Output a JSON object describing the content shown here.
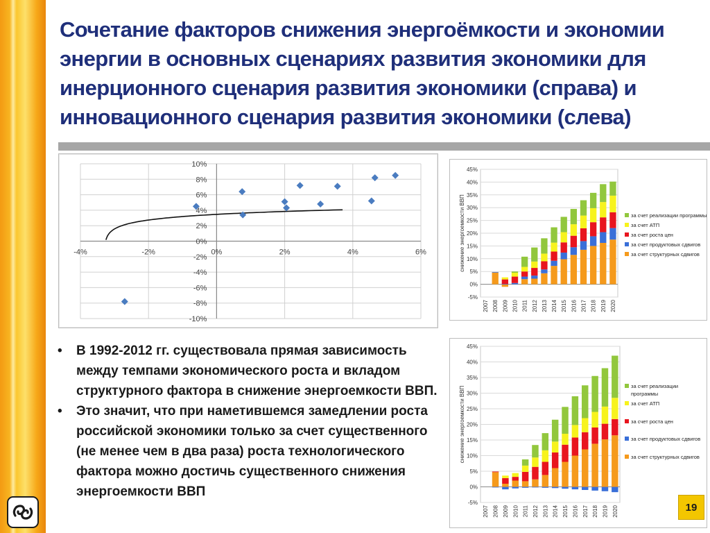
{
  "slide": {
    "title": "Сочетание факторов снижения энергоёмкости и экономии энергии в основных сценариях развития экономики для инерционного сценария развития экономики (справа) и инновационного сценария развития экономики (слева)",
    "page_number": "19",
    "logo_icon": "logo-icon",
    "colors": {
      "title": "#1f2f7a",
      "stripe": "#f7a818",
      "rule": "#a6a6a6",
      "marker": "#4a7cc0",
      "page_badge": "#f3c600"
    }
  },
  "bullets": [
    "В 1992-2012 гг. существовала прямая зависимость между темпами экономического роста и вкладом структурного фактора в снижение энергоемкости ВВП.",
    "Это значит, что при наметившемся замедлении роста российской экономики только за счет существенного (не менее чем в два раза) роста технологического фактора можно достичь существенного снижения энергоемкости ВВП"
  ],
  "chart_data": [
    {
      "type": "scatter",
      "title": "",
      "xlabel": "",
      "ylabel": "",
      "xlim": [
        -0.04,
        0.06
      ],
      "ylim": [
        -0.1,
        0.1
      ],
      "x_ticks": [
        "-4%",
        "-2%",
        "0%",
        "2%",
        "4%",
        "6%"
      ],
      "y_ticks": [
        "10%",
        "8%",
        "6%",
        "4%",
        "2%",
        "0%",
        "-2%",
        "-4%",
        "-6%",
        "-8%",
        "-10%"
      ],
      "grid": true,
      "marker_color": "#4a7cc0",
      "points": [
        {
          "x": -0.027,
          "y": -0.078
        },
        {
          "x": -0.006,
          "y": 0.045
        },
        {
          "x": 0.0075,
          "y": 0.064
        },
        {
          "x": 0.0077,
          "y": 0.034
        },
        {
          "x": 0.02,
          "y": 0.051
        },
        {
          "x": 0.0205,
          "y": 0.043
        },
        {
          "x": 0.0245,
          "y": 0.072
        },
        {
          "x": 0.0305,
          "y": 0.048
        },
        {
          "x": 0.0355,
          "y": 0.071
        },
        {
          "x": 0.0455,
          "y": 0.052
        },
        {
          "x": 0.0465,
          "y": 0.082
        },
        {
          "x": 0.0525,
          "y": 0.085
        }
      ],
      "trendline": {
        "type": "logarithmic",
        "x_start": -0.0325,
        "x_end": 0.037,
        "x_shift": 0.033,
        "a": 0.00787,
        "b": 0.0615
      }
    },
    {
      "type": "bar",
      "stacked": true,
      "ylabel": "снижение энергоемкости ВВП",
      "ylim": [
        -0.05,
        0.45
      ],
      "y_ticks": [
        "45%",
        "40%",
        "35%",
        "30%",
        "25%",
        "20%",
        "15%",
        "10%",
        "5%",
        "0%",
        "-5%"
      ],
      "categories": [
        "2007",
        "2008",
        "2009",
        "2010",
        "2011",
        "2012",
        "2013",
        "2014",
        "2015",
        "2016",
        "2017",
        "2018",
        "2019",
        "2020"
      ],
      "legend_position": "right",
      "series": [
        {
          "name": "за счет структурных сдвигов",
          "color": "#f59a1c",
          "values": [
            0.0,
            0.046,
            -0.01,
            0.0,
            0.02,
            0.022,
            0.043,
            0.072,
            0.098,
            0.115,
            0.135,
            0.15,
            0.162,
            0.175
          ]
        },
        {
          "name": "за счет продуктовых сдвигов",
          "color": "#3a6fd8",
          "values": [
            0,
            0.002,
            0.001,
            0.005,
            0.01,
            0.012,
            0.015,
            0.02,
            0.026,
            0.03,
            0.034,
            0.038,
            0.042,
            0.045
          ]
        },
        {
          "name": "за счет роста цен",
          "color": "#e8151e",
          "values": [
            0,
            0,
            0.018,
            0.025,
            0.02,
            0.03,
            0.032,
            0.036,
            0.04,
            0.045,
            0.05,
            0.055,
            0.058,
            0.062
          ]
        },
        {
          "name": "за счет АТП",
          "color": "#f7f31d",
          "values": [
            0,
            0,
            0.008,
            0.015,
            0.018,
            0.025,
            0.03,
            0.035,
            0.04,
            0.045,
            0.05,
            0.055,
            0.06,
            0.065
          ]
        },
        {
          "name": "за счет реализации программы",
          "color": "#92c73d",
          "values": [
            0,
            0,
            0.0,
            0.005,
            0.04,
            0.055,
            0.06,
            0.06,
            0.06,
            0.06,
            0.06,
            0.06,
            0.07,
            0.055
          ]
        }
      ]
    },
    {
      "type": "bar",
      "stacked": true,
      "ylabel": "снижение энергоемкости ВВП",
      "ylim": [
        -0.05,
        0.45
      ],
      "y_ticks": [
        "45%",
        "40%",
        "35%",
        "30%",
        "25%",
        "20%",
        "15%",
        "10%",
        "5%",
        "0%",
        "-5%"
      ],
      "categories": [
        "2007",
        "2008",
        "2009",
        "2010",
        "2011",
        "2012",
        "2013",
        "2014",
        "2015",
        "2016",
        "2017",
        "2018",
        "2019",
        "2020"
      ],
      "legend_position": "right",
      "series": [
        {
          "name": "за счет структурных сдвигов",
          "color": "#f59a1c",
          "values": [
            0.0,
            0.047,
            0.01,
            0.02,
            0.018,
            0.024,
            0.038,
            0.06,
            0.08,
            0.1,
            0.12,
            0.138,
            0.152,
            0.165
          ]
        },
        {
          "name": "за счет продуктовых сдвигов",
          "color": "#3a6fd8",
          "values": [
            0,
            -0.002,
            -0.008,
            -0.005,
            -0.003,
            -0.002,
            -0.003,
            -0.004,
            -0.006,
            -0.008,
            -0.01,
            -0.012,
            -0.014,
            -0.017
          ]
        },
        {
          "name": "за счет роста цен",
          "color": "#e8151e",
          "values": [
            0,
            0.002,
            0.018,
            0.012,
            0.03,
            0.04,
            0.042,
            0.05,
            0.055,
            0.058,
            0.055,
            0.052,
            0.05,
            0.052
          ]
        },
        {
          "name": "за счет АТП",
          "color": "#f7f31d",
          "values": [
            0,
            0,
            0.008,
            0.012,
            0.02,
            0.03,
            0.037,
            0.035,
            0.035,
            0.04,
            0.045,
            0.05,
            0.055,
            0.068
          ]
        },
        {
          "name": "за счет реализации программы",
          "color": "#92c73d",
          "values": [
            0,
            0,
            0.0,
            0.0,
            0.02,
            0.04,
            0.055,
            0.07,
            0.086,
            0.092,
            0.105,
            0.115,
            0.123,
            0.135
          ]
        }
      ]
    }
  ]
}
